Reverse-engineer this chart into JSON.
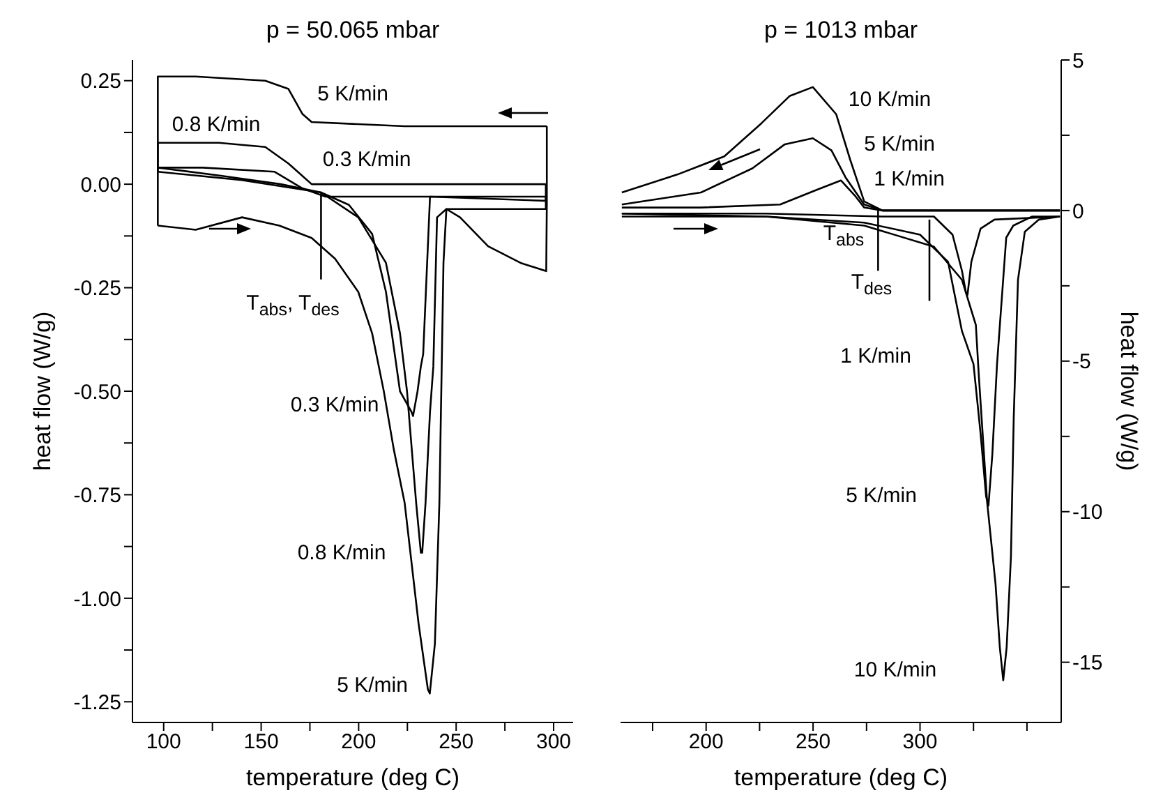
{
  "chart_data": [
    {
      "type": "line",
      "title": "p = 50.065 mbar",
      "xlabel": "temperature (deg C)",
      "ylabel": "heat flow (W/g)",
      "xlim": [
        84,
        310
      ],
      "ylim": [
        -1.3,
        0.3
      ],
      "xticks": [
        100,
        {
          "value": 125,
          "label": null
        },
        150,
        {
          "value": 175,
          "label": null
        },
        200,
        {
          "value": 225,
          "label": null
        },
        250,
        {
          "value": 275,
          "label": null
        },
        300
      ],
      "yticks": [
        0.25,
        {
          "value": 0.125,
          "label": null
        },
        {
          "value": 0,
          "label": "0.00"
        },
        {
          "value": -0.125,
          "label": null
        },
        -0.25,
        {
          "value": -0.375,
          "label": null
        },
        {
          "value": -0.5,
          "label": "-0.50"
        },
        {
          "value": -0.625,
          "label": null
        },
        -0.75,
        {
          "value": -0.875,
          "label": null
        },
        {
          "value": -1,
          "label": "-1.00"
        },
        {
          "value": -1.125,
          "label": null
        },
        -1.25
      ],
      "series": [
        {
          "color": "#000000",
          "x": [
            97,
            116.4,
            140.2,
            159.3,
            175.9,
            187.9,
            199.8,
            206.9,
            212.9,
            218,
            223.6,
            230.7,
            235.5,
            236.5,
            239.1,
            241.4,
            242.6,
            243.5,
            245,
            252,
            266.4,
            283,
            296.2,
            296.5,
            296.5
          ],
          "values": [
            -0.1,
            -0.11,
            -0.08,
            -0.1,
            -0.13,
            -0.18,
            -0.26,
            -0.36,
            -0.5,
            -0.64,
            -0.77,
            -1.06,
            -1.22,
            -1.23,
            -1.11,
            -0.77,
            -0.44,
            -0.19,
            -0.06,
            -0.08,
            -0.15,
            -0.19,
            -0.21,
            -0.05,
            0.14
          ]
        },
        {
          "color": "#000000",
          "x": [
            97,
            97,
            116.4,
            152.1,
            164,
            171.1,
            175.9,
            223.6,
            292.6,
            296.5
          ],
          "values": [
            -0.1,
            0.26,
            0.26,
            0.25,
            0.23,
            0.17,
            0.15,
            0.14,
            0.14,
            0.14
          ]
        },
        {
          "color": "#000000",
          "x": [
            97,
            130,
            160,
            180.7,
            199.8,
            214,
            221.2,
            224.8,
            229.5,
            231.9,
            232.6,
            234.3,
            236.6,
            238.3,
            240.2,
            245,
            295,
            296,
            296
          ],
          "values": [
            0.04,
            0.02,
            0,
            -0.02,
            -0.08,
            -0.19,
            -0.36,
            -0.5,
            -0.77,
            -0.89,
            -0.89,
            -0.77,
            -0.55,
            -0.44,
            -0.08,
            -0.06,
            -0.06,
            -0.06,
            0
          ]
        },
        {
          "color": "#000000",
          "x": [
            97,
            97,
            128.3,
            152.1,
            164,
            175.9,
            199.8,
            296
          ],
          "values": [
            0.04,
            0.1,
            0.1,
            0.09,
            0.05,
            0,
            0,
            0
          ]
        },
        {
          "color": "#000000",
          "x": [
            97,
            140,
            180.7,
            195,
            206.9,
            214,
            221.2,
            227.1,
            227.9,
            230.2,
            231.9,
            233.1,
            236.6,
            295,
            296,
            296
          ],
          "values": [
            0.03,
            0.01,
            -0.02,
            -0.05,
            -0.12,
            -0.26,
            -0.5,
            -0.55,
            -0.56,
            -0.5,
            -0.44,
            -0.41,
            -0.03,
            -0.04,
            -0.04,
            -0.03
          ]
        },
        {
          "color": "#000000",
          "x": [
            97,
            97,
            120,
            156.9,
            171.1,
            183,
            296
          ],
          "values": [
            0.03,
            0.04,
            0.04,
            0.03,
            -0.01,
            -0.03,
            -0.03
          ]
        },
        {
          "color": "#000000",
          "x": [
            180.7,
            180.7
          ],
          "values": [
            -0.02,
            -0.23
          ]
        }
      ],
      "annotations": [
        "5 K/min",
        "0.8 K/min",
        "0.3 K/min",
        "T$_{abs}$, T$_{des}$",
        "0.3 K/min",
        "0.8 K/min",
        "5 K/min"
      ]
    },
    {
      "type": "line",
      "title": "p = 1013 mbar",
      "xlabel": "temperature (deg C)",
      "y2label": "heat flow (W/g)",
      "xlim": [
        160,
        366
      ],
      "y2lim": [
        -17,
        5
      ],
      "xticks": [
        {
          "value": 175,
          "label": null
        },
        200,
        {
          "value": 225,
          "label": null
        },
        250,
        {
          "value": 275,
          "label": null
        },
        300,
        {
          "value": 325,
          "label": null
        },
        {
          "value": 350,
          "label": null
        }
      ],
      "y2ticks": [
        5,
        {
          "value": 2.5,
          "label": null
        },
        0,
        {
          "value": -2.5,
          "label": null
        },
        -5,
        {
          "value": -7.5,
          "label": null
        },
        -10,
        {
          "value": -12.5,
          "label": null
        },
        -15
      ],
      "series": [
        {
          "color": "#000000",
          "axis": "y2",
          "x": [
            160.6,
            186.7,
            208.5,
            225.9,
            239,
            249.9,
            260.8,
            267.3,
            273.9,
            282.5,
            365.4
          ],
          "values": [
            0.6,
            1.2,
            1.8,
            2.9,
            3.8,
            4.1,
            3.2,
            1.7,
            0.3,
            0,
            0
          ]
        },
        {
          "color": "#000000",
          "axis": "y2",
          "x": [
            160.6,
            197.6,
            221.6,
            236.8,
            249.9,
            258.6,
            265.2,
            273.9,
            282.5,
            365.4
          ],
          "values": [
            0.2,
            0.6,
            1.4,
            2.2,
            2.4,
            2,
            1.1,
            0.2,
            0,
            0
          ]
        },
        {
          "color": "#000000",
          "axis": "y2",
          "x": [
            160.6,
            197.4,
            234.6,
            252.1,
            263,
            269.5,
            273.9,
            282.5,
            365.4
          ],
          "values": [
            0.1,
            0.1,
            0.2,
            0.7,
            1,
            0.5,
            0.1,
            0,
            0
          ]
        },
        {
          "color": "#000000",
          "axis": "y2",
          "x": [
            160.6,
            228,
            282.5,
            306.5,
            315.2,
            319.6,
            321.4,
            322.2,
            324,
            328.3,
            334.8,
            365.4
          ],
          "values": [
            -0.1,
            -0.1,
            -0.2,
            -0.2,
            -0.8,
            -2,
            -2.7,
            -2.8,
            -1.7,
            -0.6,
            -0.3,
            -0.2
          ]
        },
        {
          "color": "#000000",
          "axis": "y2",
          "x": [
            160.6,
            228,
            273.9,
            300,
            313.1,
            319.6,
            325,
            328.3,
            330.9,
            332,
            333.8,
            336,
            340.3,
            343.6,
            352.3,
            365.4
          ],
          "values": [
            -0.1,
            -0.2,
            -0.4,
            -0.8,
            -1.7,
            -4,
            -5.1,
            -7.4,
            -9.5,
            -9.8,
            -8.1,
            -5.1,
            -0.9,
            -0.5,
            -0.2,
            -0.2
          ]
        },
        {
          "color": "#000000",
          "axis": "y2",
          "x": [
            160.6,
            228,
            273.9,
            306.5,
            319.6,
            326.1,
            327.5,
            331.4,
            335.3,
            337.3,
            338.9,
            340.5,
            342.5,
            343.8,
            345.8,
            349,
            355.6,
            365.4
          ],
          "values": [
            -0.2,
            -0.2,
            -0.5,
            -1.2,
            -2.3,
            -3.8,
            -5.5,
            -9.7,
            -12.4,
            -14.5,
            -15.6,
            -14.5,
            -11.5,
            -6.9,
            -2.3,
            -0.7,
            -0.3,
            -0.2
          ]
        },
        {
          "color": "#000000",
          "axis": "y2",
          "x": [
            280.4,
            280.4
          ],
          "values": [
            0,
            -2
          ]
        },
        {
          "color": "#000000",
          "axis": "y2",
          "x": [
            304.4,
            304.4
          ],
          "values": [
            -0.3,
            -3
          ]
        }
      ],
      "annotations": [
        "10 K/min",
        "5 K/min",
        "1 K/min",
        "T$_{abs}$",
        "T$_{des}$",
        "1 K/min",
        "5 K/min",
        "10 K/min"
      ]
    }
  ]
}
